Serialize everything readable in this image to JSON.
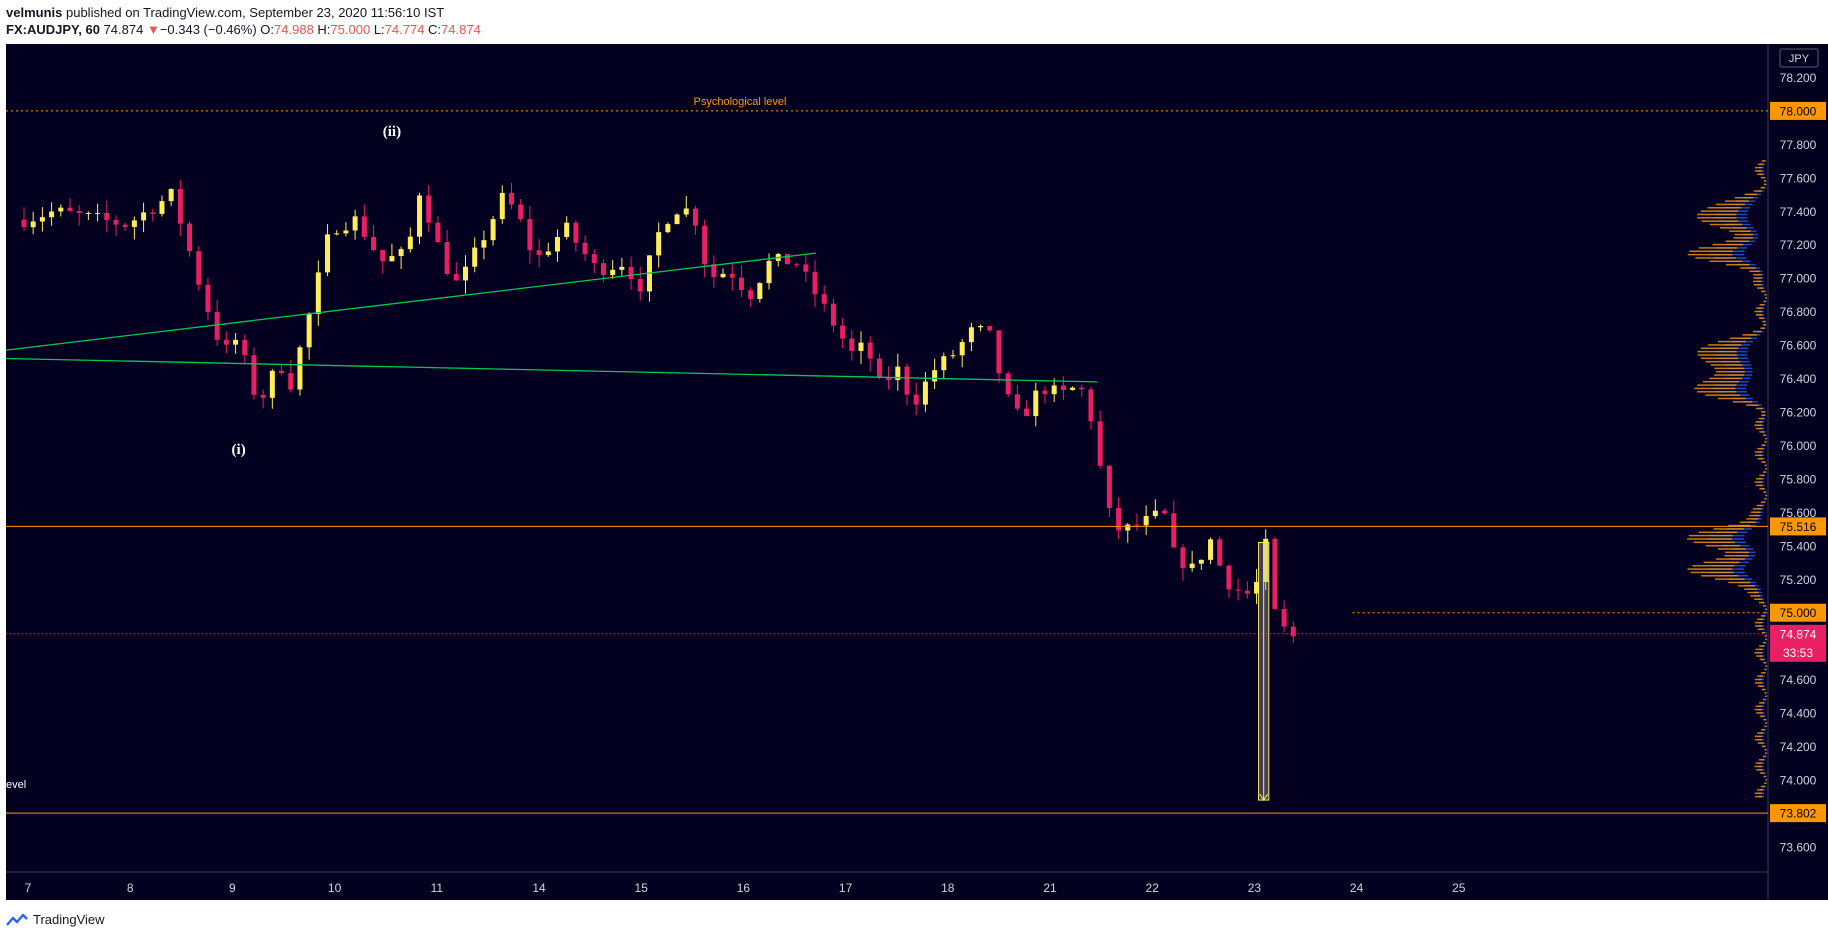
{
  "header": {
    "author": "velmunis",
    "published_text": "published on TradingView.com, September 23, 2020 11:56:10 IST",
    "symbol": "FX:AUDJPY, 60",
    "last": "74.874",
    "change_arrow": "▼",
    "change": "−0.343 (−0.46%)",
    "open_label": "O:",
    "open": "74.988",
    "high_label": "H:",
    "high": "75.000",
    "low_label": "L:",
    "low": "74.774",
    "close_label": "C:",
    "close": "74.874"
  },
  "footer": {
    "brand": "TradingView",
    "logo_icon": "tradingview-logo-icon"
  },
  "colors": {
    "background": "#04001f",
    "bull_candle": "#ffee58",
    "bear_candle": "#e91e63",
    "trendline": "#00c853",
    "level": "#ff9800",
    "volume_profile": "#2962ff",
    "axis_text": "#d1d4dc",
    "current_price_tag": "#e91e63"
  },
  "chart_data": {
    "type": "candlestick",
    "symbol": "FX:AUDJPY",
    "interval": "60",
    "currency_label": "JPY",
    "ylim": [
      73.45,
      78.4
    ],
    "y_ticks": [
      "73.600",
      "74.000",
      "74.200",
      "74.400",
      "74.600",
      "75.200",
      "75.400",
      "75.600",
      "75.800",
      "76.000",
      "76.200",
      "76.400",
      "76.600",
      "76.800",
      "77.000",
      "77.200",
      "77.400",
      "77.600",
      "77.800",
      "78.200"
    ],
    "x_tick_labels": [
      "7",
      "8",
      "9",
      "10",
      "11",
      "14",
      "15",
      "16",
      "17",
      "18",
      "21",
      "22",
      "23",
      "24",
      "25"
    ],
    "x_tick_index": [
      0,
      1,
      2,
      3,
      4,
      5,
      6,
      7,
      8,
      9,
      10,
      11,
      12,
      13,
      14
    ],
    "waypoints": [
      [
        0,
        77.35
      ],
      [
        0.3,
        77.4
      ],
      [
        1.0,
        77.32
      ],
      [
        1.45,
        77.5
      ],
      [
        1.55,
        77.3
      ],
      [
        1.75,
        76.9
      ],
      [
        1.95,
        76.55
      ],
      [
        2.1,
        76.65
      ],
      [
        2.2,
        76.4
      ],
      [
        2.3,
        76.25
      ],
      [
        2.5,
        76.5
      ],
      [
        2.6,
        76.35
      ],
      [
        2.8,
        76.8
      ],
      [
        3.0,
        77.3
      ],
      [
        3.25,
        77.35
      ],
      [
        3.5,
        77.1
      ],
      [
        3.75,
        77.15
      ],
      [
        3.88,
        77.55
      ],
      [
        3.97,
        77.35
      ],
      [
        4.1,
        77.1
      ],
      [
        4.25,
        76.95
      ],
      [
        4.5,
        77.25
      ],
      [
        4.7,
        77.5
      ],
      [
        4.85,
        77.35
      ],
      [
        5.0,
        77.1
      ],
      [
        5.3,
        77.3
      ],
      [
        5.6,
        77.05
      ],
      [
        5.9,
        77.1
      ],
      [
        6.05,
        76.85
      ],
      [
        6.15,
        77.2
      ],
      [
        6.35,
        77.42
      ],
      [
        6.55,
        77.4
      ],
      [
        6.7,
        77.0
      ],
      [
        6.9,
        77.05
      ],
      [
        7.1,
        76.9
      ],
      [
        7.3,
        77.1
      ],
      [
        7.55,
        77.1
      ],
      [
        7.75,
        76.9
      ],
      [
        7.95,
        76.7
      ],
      [
        8.1,
        76.55
      ],
      [
        8.25,
        76.6
      ],
      [
        8.35,
        76.35
      ],
      [
        8.55,
        76.45
      ],
      [
        8.7,
        76.25
      ],
      [
        8.9,
        76.45
      ],
      [
        9.1,
        76.55
      ],
      [
        9.3,
        76.7
      ],
      [
        9.45,
        76.65
      ],
      [
        9.6,
        76.3
      ],
      [
        9.75,
        76.15
      ],
      [
        9.95,
        76.35
      ],
      [
        10.15,
        76.3
      ],
      [
        10.3,
        76.35
      ],
      [
        10.4,
        76.3
      ],
      [
        10.55,
        75.8
      ],
      [
        10.65,
        75.5
      ],
      [
        10.8,
        75.5
      ],
      [
        11.0,
        75.55
      ],
      [
        11.15,
        75.6
      ],
      [
        11.25,
        75.35
      ],
      [
        11.45,
        75.25
      ],
      [
        11.6,
        75.45
      ],
      [
        11.75,
        75.2
      ],
      [
        11.95,
        75.1
      ],
      [
        12.1,
        75.2
      ],
      [
        12.15,
        75.4
      ],
      [
        12.25,
        74.95
      ],
      [
        12.4,
        74.85
      ],
      [
        12.5,
        74.874
      ]
    ],
    "trendlines": [
      {
        "label": "upper-trendline",
        "from": [
          0,
          76.57
        ],
        "to": [
          7.75,
          77.15
        ]
      },
      {
        "label": "lower-trendline",
        "from": [
          0,
          76.52
        ],
        "to": [
          10.5,
          76.38
        ]
      }
    ],
    "levels": [
      {
        "price": 78.0,
        "tag": "78.000",
        "style": "dotted",
        "label": "Psychological level",
        "x_from": 0
      },
      {
        "price": 75.516,
        "tag": "75.516",
        "style": "solid",
        "x_from": 0
      },
      {
        "price": 75.0,
        "tag": "75.000",
        "style": "dotted",
        "x_from": 13.0
      },
      {
        "price": 73.802,
        "tag": "73.802",
        "style": "solid",
        "label": "evel",
        "x_from": 0
      }
    ],
    "current_price": {
      "price": 74.874,
      "tag": "74.874",
      "countdown": "33:53"
    },
    "wave_labels": [
      {
        "text": "(i)",
        "x": 2.1,
        "y": 75.95
      },
      {
        "text": "(ii)",
        "x": 3.6,
        "y": 77.85
      }
    ],
    "range_box": {
      "x1": 12.08,
      "x2": 12.18,
      "y_top": 75.42,
      "y_bottom": 73.88
    },
    "volume_profile_peaks": [
      77.38,
      77.15,
      76.55,
      76.35,
      75.45,
      75.25
    ]
  }
}
